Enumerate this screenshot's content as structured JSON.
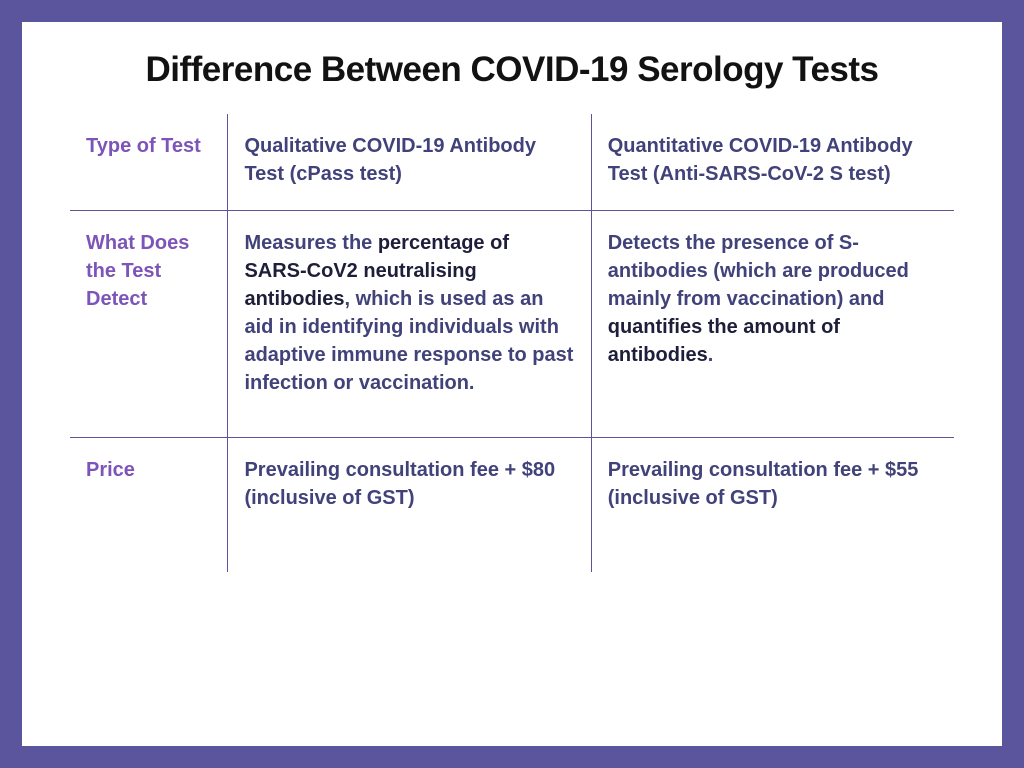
{
  "colors": {
    "frame": "#5a559c",
    "panel": "#ffffff",
    "title": "#121212",
    "label": "#7d54b8",
    "body": "#41427a",
    "bold_dark": "#1e1e3a",
    "rule": "#5a559c"
  },
  "title": "Difference Between COVID-19 Serology Tests",
  "rows": {
    "type": {
      "label": "Type of Test",
      "col1": "Qualitative COVID-19 Antibody Test (cPass test)",
      "col2": "Quantitative COVID-19 Antibody Test (Anti-SARS-CoV-2 S test)"
    },
    "detect": {
      "label": "What Does the Test Detect",
      "col1_pre": "Measures the ",
      "col1_bold": "percentage of SARS-CoV2 neutralising antibodies",
      "col1_post": ", which is used as an aid in identifying individuals with adaptive immune response to past infection or vaccination.",
      "col2_pre": "Detects the presence of S-antibodies (which are produced mainly from vaccination) and ",
      "col2_bold": "quantifies the amount of antibodies",
      "col2_post": "."
    },
    "price": {
      "label": "Price",
      "col1": "Prevailing consultation fee + $80 (inclusive of GST)",
      "col2": "Prevailing consultation fee + $55 (inclusive of GST)"
    }
  }
}
